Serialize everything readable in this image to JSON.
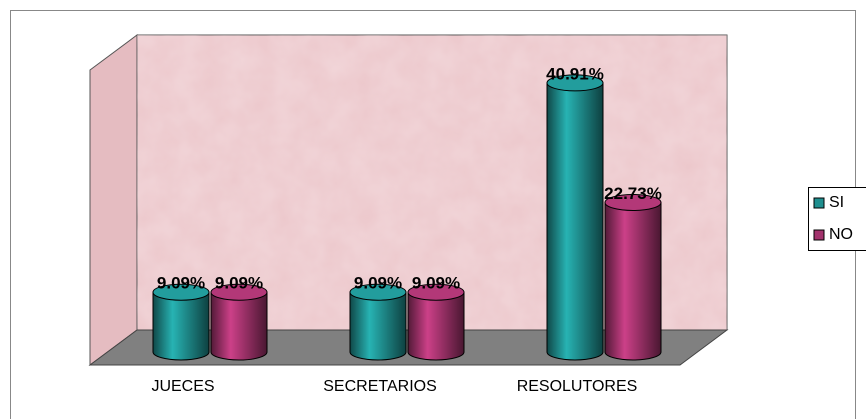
{
  "chart_data": {
    "type": "bar3d",
    "categories": [
      "JUECES",
      "SECRETARIOS",
      "RESOLUTORES"
    ],
    "series": [
      {
        "name": "SI",
        "color": "#1f8f8f",
        "values": [
          9.09,
          9.09,
          40.91
        ],
        "value_labels": [
          "9.09%",
          "9.09%",
          "40.91%"
        ]
      },
      {
        "name": "NO",
        "color": "#a3336d",
        "values": [
          9.09,
          9.09,
          22.73
        ],
        "value_labels": [
          "9.09%",
          "9.09%",
          "22.73%"
        ]
      }
    ],
    "ylim": [
      0,
      45
    ]
  }
}
